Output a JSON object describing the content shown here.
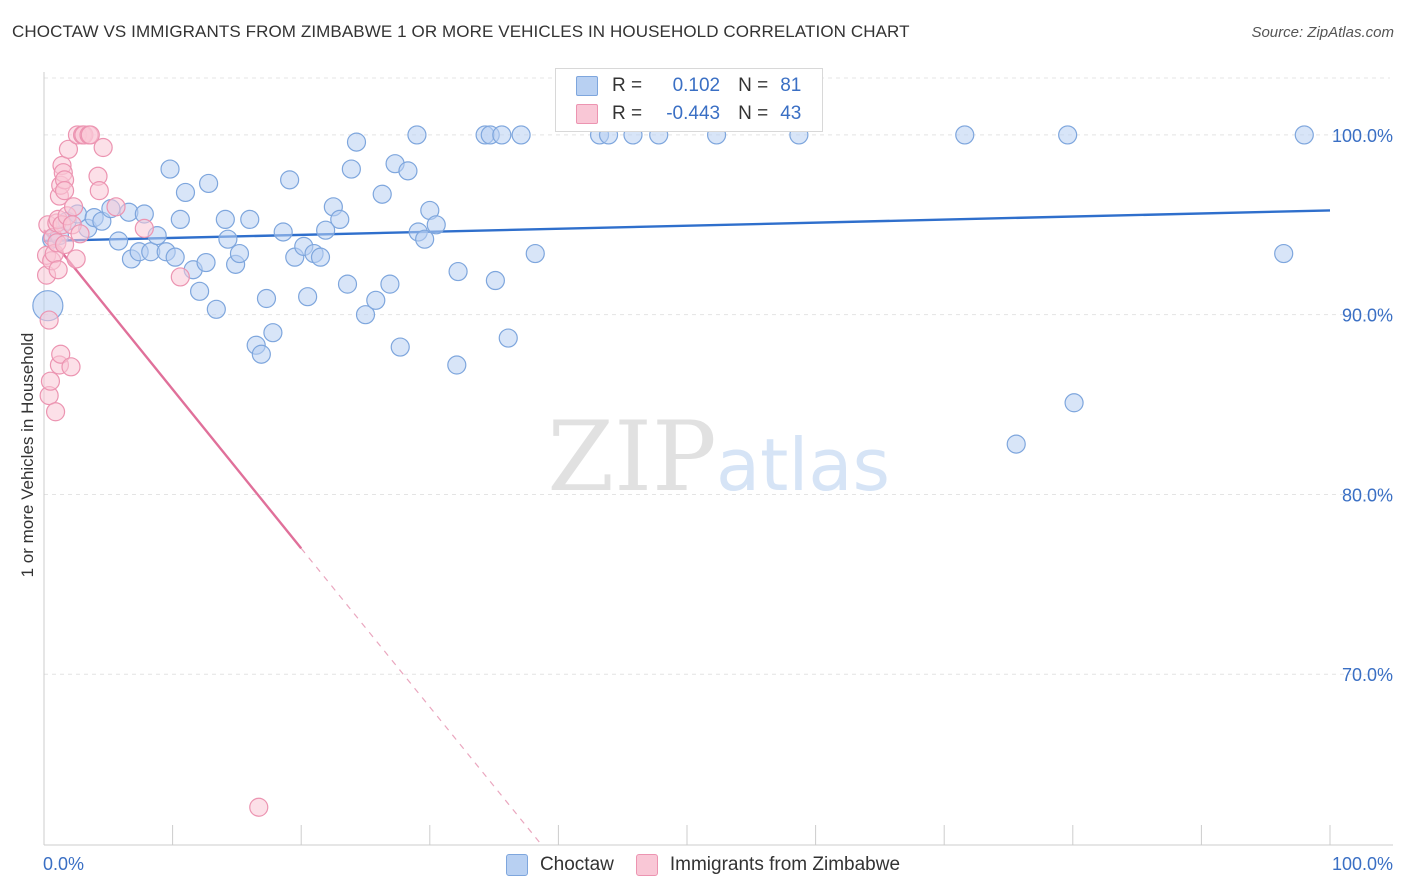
{
  "title": "CHOCTAW VS IMMIGRANTS FROM ZIMBABWE 1 OR MORE VEHICLES IN HOUSEHOLD CORRELATION CHART",
  "source": "Source: ZipAtlas.com",
  "watermark": {
    "zip": "ZIP",
    "atlas": "atlas"
  },
  "legend": {
    "r_label": "R =",
    "n_label": "N =",
    "rows": [
      {
        "series": "Choctaw",
        "r": "0.102",
        "n": "81",
        "color": "#8fb4e8"
      },
      {
        "series": "Immigrants from Zimbabwe",
        "r": "-0.443",
        "n": "43",
        "color": "#f5a3bd"
      }
    ]
  },
  "bottom_legend": [
    {
      "label": "Choctaw",
      "fill": "#b8d0f2",
      "stroke": "#7ea6dd"
    },
    {
      "label": "Immigrants from Zimbabwe",
      "fill": "#f9c7d6",
      "stroke": "#ec94b1"
    }
  ],
  "chart_data": {
    "type": "scatter",
    "title": "CHOCTAW VS IMMIGRANTS FROM ZIMBABWE 1 OR MORE VEHICLES IN HOUSEHOLD CORRELATION CHART",
    "xlabel": "",
    "ylabel": "1 or more Vehicles in Household",
    "xlim": [
      0,
      100
    ],
    "ylim": [
      60.5,
      103.5
    ],
    "x_tick_labels": [
      {
        "value": 0,
        "label": "0.0%"
      },
      {
        "value": 100,
        "label": "100.0%"
      }
    ],
    "y_tick_labels": [
      {
        "value": 70,
        "label": "70.0%"
      },
      {
        "value": 80,
        "label": "80.0%"
      },
      {
        "value": 90,
        "label": "90.0%"
      },
      {
        "value": 100,
        "label": "100.0%"
      }
    ],
    "grid": true,
    "series": [
      {
        "name": "Choctaw",
        "color": "#7ea6dd",
        "fill": "#b8d0f2",
        "r": 0.102,
        "n": 81,
        "trend": {
          "x": [
            0,
            100
          ],
          "y": [
            94.1,
            95.8
          ]
        },
        "points": [
          [
            0.3,
            90.5
          ],
          [
            0.6,
            94.2
          ],
          [
            1.2,
            94.4
          ],
          [
            1.8,
            95.2
          ],
          [
            2.6,
            95.6
          ],
          [
            3.4,
            94.8
          ],
          [
            3.9,
            95.4
          ],
          [
            4.5,
            95.2
          ],
          [
            5.2,
            95.9
          ],
          [
            5.8,
            94.1
          ],
          [
            6.6,
            95.7
          ],
          [
            6.8,
            93.1
          ],
          [
            7.4,
            93.5
          ],
          [
            7.8,
            95.6
          ],
          [
            8.3,
            93.5
          ],
          [
            8.8,
            94.4
          ],
          [
            9.5,
            93.5
          ],
          [
            9.8,
            98.1
          ],
          [
            10.2,
            93.2
          ],
          [
            10.6,
            95.3
          ],
          [
            11.0,
            96.8
          ],
          [
            11.6,
            92.5
          ],
          [
            12.1,
            91.3
          ],
          [
            12.6,
            92.9
          ],
          [
            12.8,
            97.3
          ],
          [
            13.4,
            90.3
          ],
          [
            14.1,
            95.3
          ],
          [
            14.3,
            94.2
          ],
          [
            14.9,
            92.8
          ],
          [
            15.2,
            93.4
          ],
          [
            16.0,
            95.3
          ],
          [
            16.5,
            88.3
          ],
          [
            16.9,
            87.8
          ],
          [
            17.3,
            90.9
          ],
          [
            17.8,
            89.0
          ],
          [
            18.6,
            94.6
          ],
          [
            19.1,
            97.5
          ],
          [
            19.5,
            93.2
          ],
          [
            20.2,
            93.8
          ],
          [
            20.5,
            91.0
          ],
          [
            21.0,
            93.4
          ],
          [
            21.5,
            93.2
          ],
          [
            21.9,
            94.7
          ],
          [
            22.5,
            96.0
          ],
          [
            23.0,
            95.3
          ],
          [
            23.6,
            91.7
          ],
          [
            23.9,
            98.1
          ],
          [
            24.3,
            99.6
          ],
          [
            25.0,
            90.0
          ],
          [
            25.8,
            90.8
          ],
          [
            26.3,
            96.7
          ],
          [
            26.9,
            91.7
          ],
          [
            27.3,
            98.4
          ],
          [
            27.7,
            88.2
          ],
          [
            28.3,
            98.0
          ],
          [
            29.0,
            100.0
          ],
          [
            29.1,
            94.6
          ],
          [
            29.6,
            94.2
          ],
          [
            30.0,
            95.8
          ],
          [
            30.5,
            95.0
          ],
          [
            32.1,
            87.2
          ],
          [
            32.2,
            92.4
          ],
          [
            34.3,
            100.0
          ],
          [
            34.7,
            100.0
          ],
          [
            35.1,
            91.9
          ],
          [
            35.6,
            100.0
          ],
          [
            36.1,
            88.7
          ],
          [
            37.1,
            100.0
          ],
          [
            38.2,
            93.4
          ],
          [
            43.2,
            100.0
          ],
          [
            43.9,
            100.0
          ],
          [
            45.8,
            100.0
          ],
          [
            47.8,
            100.0
          ],
          [
            52.3,
            100.0
          ],
          [
            58.7,
            100.0
          ],
          [
            75.6,
            82.8
          ],
          [
            71.6,
            100.0
          ],
          [
            79.6,
            100.0
          ],
          [
            80.1,
            85.1
          ],
          [
            96.4,
            93.4
          ],
          [
            98.0,
            100.0
          ]
        ]
      },
      {
        "name": "Immigrants from Zimbabwe",
        "color": "#ec94b1",
        "fill": "#f9c7d6",
        "r": -0.443,
        "n": 43,
        "trend": {
          "x": [
            0,
            20
          ],
          "y": [
            94.7,
            77.0
          ]
        },
        "trend_dashed": {
          "x": [
            20,
            38.7
          ],
          "y": [
            77.0,
            60.5
          ]
        },
        "points": [
          [
            0.2,
            92.2
          ],
          [
            0.2,
            93.3
          ],
          [
            0.3,
            95.0
          ],
          [
            0.4,
            85.5
          ],
          [
            0.4,
            89.7
          ],
          [
            0.5,
            86.3
          ],
          [
            0.6,
            93.0
          ],
          [
            0.7,
            94.3
          ],
          [
            0.8,
            93.4
          ],
          [
            0.9,
            84.6
          ],
          [
            1.0,
            94.0
          ],
          [
            1.0,
            95.1
          ],
          [
            1.1,
            92.5
          ],
          [
            1.1,
            95.3
          ],
          [
            1.2,
            96.6
          ],
          [
            1.2,
            87.2
          ],
          [
            1.3,
            87.8
          ],
          [
            1.3,
            97.2
          ],
          [
            1.4,
            95.0
          ],
          [
            1.4,
            98.3
          ],
          [
            1.5,
            97.9
          ],
          [
            1.6,
            97.5
          ],
          [
            1.6,
            96.9
          ],
          [
            1.6,
            93.9
          ],
          [
            1.8,
            95.5
          ],
          [
            1.9,
            99.2
          ],
          [
            2.1,
            87.1
          ],
          [
            2.2,
            95.0
          ],
          [
            2.3,
            96.0
          ],
          [
            2.5,
            93.1
          ],
          [
            2.6,
            100.0
          ],
          [
            3.0,
            100.0
          ],
          [
            3.1,
            100.0
          ],
          [
            3.5,
            100.0
          ],
          [
            3.6,
            100.0
          ],
          [
            4.2,
            97.7
          ],
          [
            4.3,
            96.9
          ],
          [
            4.6,
            99.3
          ],
          [
            5.6,
            96.0
          ],
          [
            7.8,
            94.8
          ],
          [
            10.6,
            92.1
          ],
          [
            16.7,
            62.6
          ],
          [
            2.8,
            94.5
          ]
        ]
      }
    ]
  }
}
